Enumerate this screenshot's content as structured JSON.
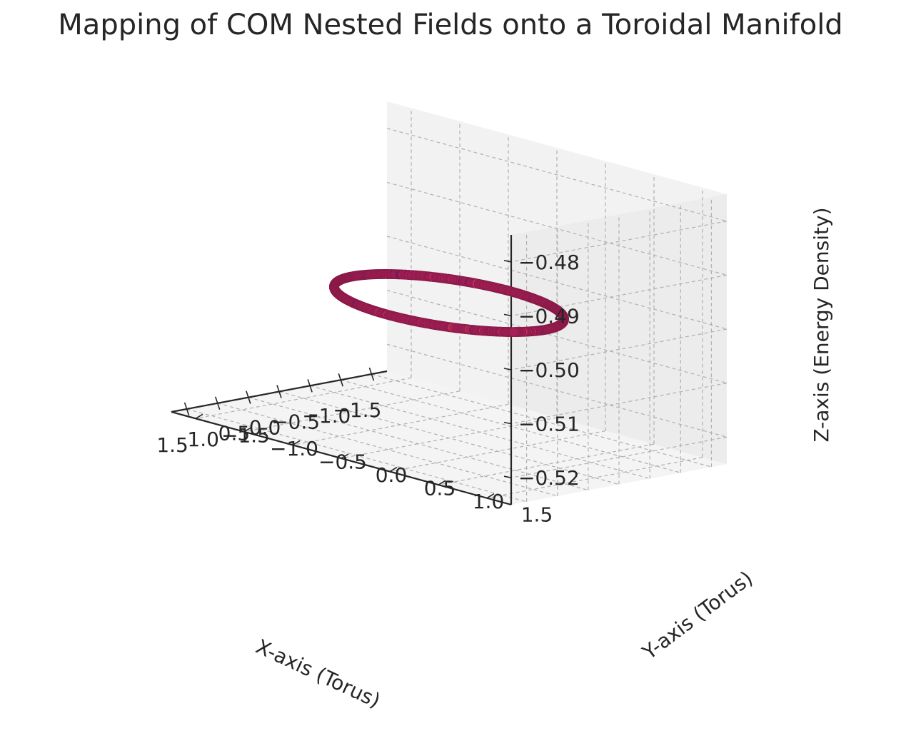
{
  "chart_data": {
    "type": "scatter",
    "title": "Mapping of COM Nested Fields onto a Toroidal Manifold",
    "xlabel": "X-axis (Torus)",
    "ylabel": "Y-axis (Torus)",
    "zlabel": "Z-axis (Energy Density)",
    "xlim": [
      -1.75,
      1.75
    ],
    "ylim": [
      -1.75,
      1.75
    ],
    "zlim": [
      -0.525,
      -0.475
    ],
    "x_ticks": [
      "−1.5",
      "−1.0",
      "−0.5",
      "0.0",
      "0.5",
      "1.0",
      "1.5"
    ],
    "y_ticks": [
      "−1.5",
      "−1.0",
      "−0.5",
      "0.0",
      "0.5",
      "1.0",
      "1.5"
    ],
    "z_ticks": [
      "−0.52",
      "−0.51",
      "−0.50",
      "−0.49",
      "−0.48"
    ],
    "grid": true,
    "series": [
      {
        "shape": "ring",
        "radius": 1.0,
        "center": [
          0,
          0
        ],
        "z": -0.5,
        "point_count": 500,
        "colors": [
          "#a51f57",
          "#c4305a",
          "#7a1d5c",
          "#e2663c",
          "#5a1a6a"
        ]
      }
    ]
  }
}
